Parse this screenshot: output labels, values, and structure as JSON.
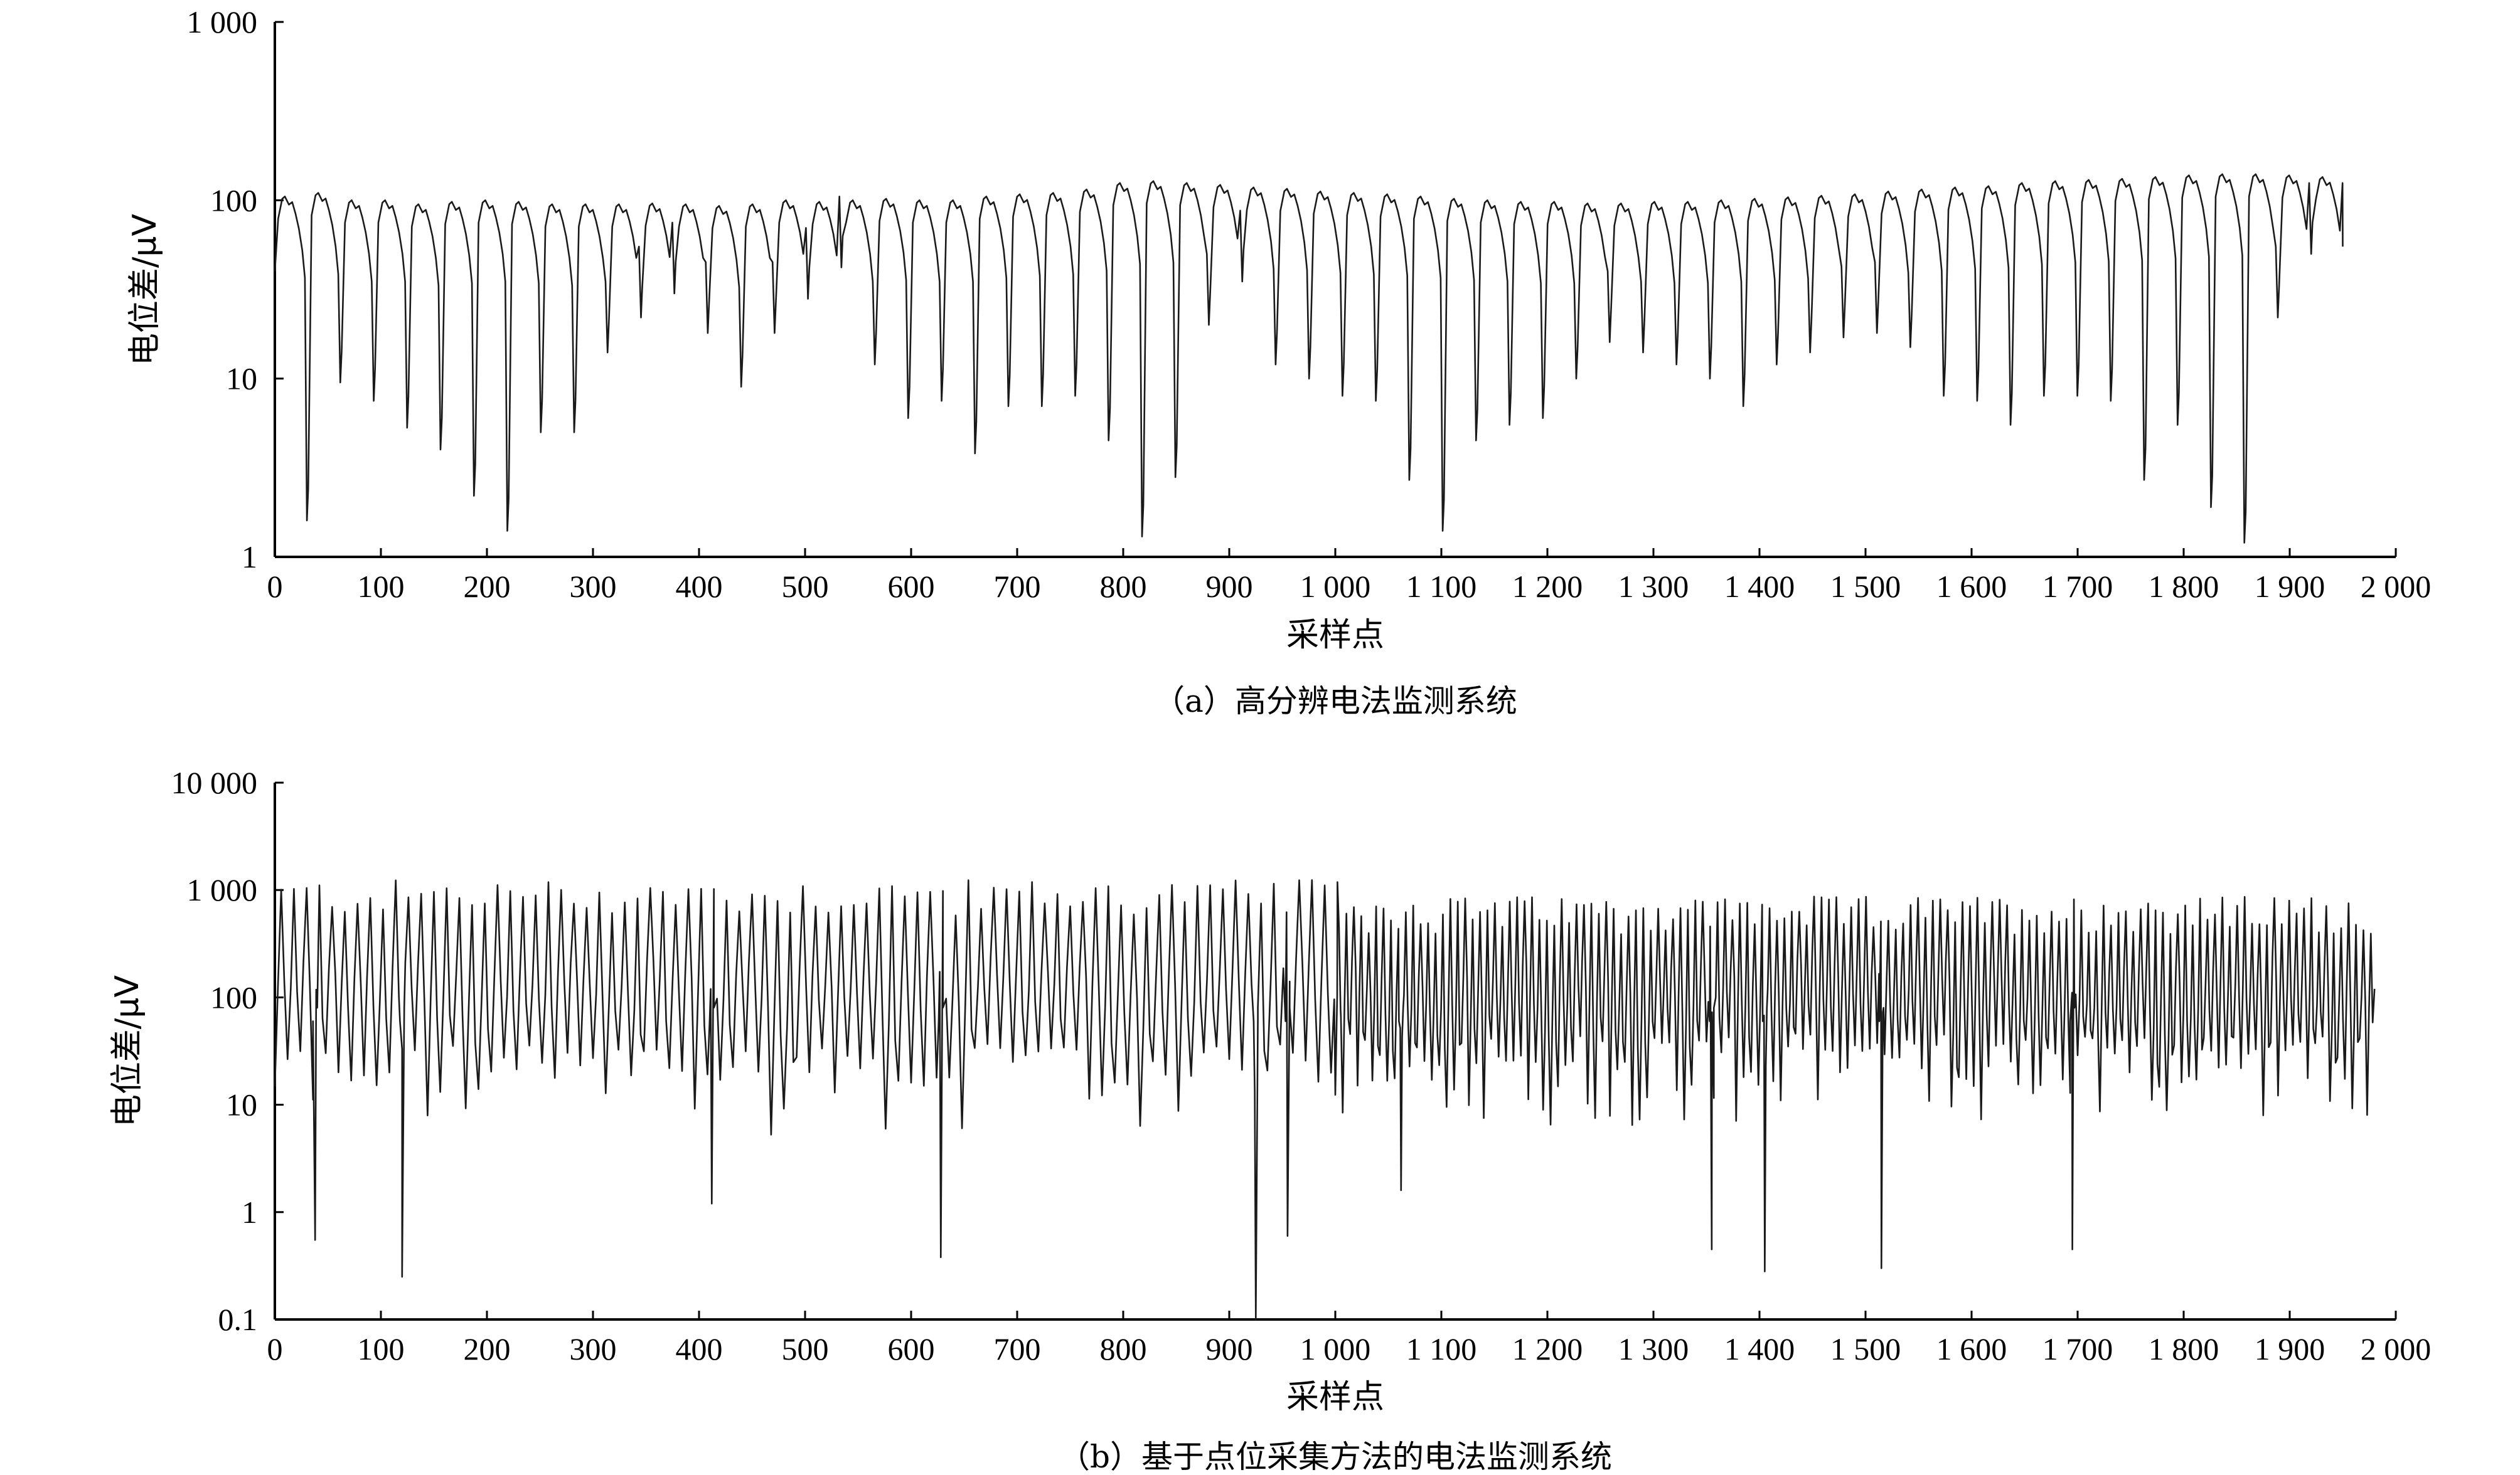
{
  "chart_data": [
    {
      "type": "line",
      "caption": "（a）高分辨电法监测系统",
      "xlabel": "采样点",
      "ylabel": "电位差/μV",
      "y_scale": "log",
      "xlim": [
        0,
        2000
      ],
      "ylim": [
        1,
        1000
      ],
      "x_ticks": [
        0,
        100,
        200,
        300,
        400,
        500,
        600,
        700,
        800,
        900,
        1000,
        1100,
        1200,
        1300,
        1400,
        1500,
        1600,
        1700,
        1800,
        1900,
        2000
      ],
      "x_tick_labels": [
        "0",
        "100",
        "200",
        "300",
        "400",
        "500",
        "600",
        "700",
        "800",
        "900",
        "1 000",
        "1 100",
        "1 200",
        "1 300",
        "1 400",
        "1 500",
        "1 600",
        "1 700",
        "1 800",
        "1 900",
        "2 000"
      ],
      "y_ticks": [
        1,
        10,
        100,
        1000
      ],
      "y_tick_labels": [
        "1",
        "10",
        "100",
        "1 000"
      ],
      "series": [
        {
          "cycle_length": 31.5,
          "x_range": [
            0,
            1950
          ],
          "peak_values": [
            105,
            110,
            100,
            100,
            95,
            98,
            100,
            98,
            95,
            95,
            95,
            96,
            95,
            93,
            95,
            100,
            98,
            100,
            102,
            100,
            100,
            105,
            108,
            110,
            115,
            125,
            128,
            125,
            122,
            118,
            116,
            112,
            110,
            108,
            105,
            102,
            100,
            98,
            98,
            96,
            96,
            98,
            98,
            100,
            102,
            104,
            106,
            108,
            112,
            115,
            118,
            120,
            125,
            128,
            130,
            132,
            135,
            138,
            140,
            140,
            138,
            135
          ],
          "dip_values": [
            1.6,
            9.5,
            7.5,
            5.3,
            4,
            2.2,
            1.4,
            5,
            5,
            14,
            22,
            30,
            18,
            9,
            18,
            28,
            42,
            12,
            6,
            7.5,
            3.8,
            7,
            7,
            8,
            4.5,
            1.3,
            2.8,
            20,
            35,
            12,
            10,
            8,
            7.5,
            2.7,
            1.4,
            4.5,
            5.5,
            6,
            10,
            16,
            14,
            12,
            10,
            7,
            12,
            14,
            17,
            18,
            15,
            8,
            7.5,
            5.5,
            8,
            8,
            7.5,
            2.7,
            5.5,
            1.9,
            1.2,
            22,
            50,
            50
          ]
        }
      ]
    },
    {
      "type": "line",
      "caption": "（b）基于点位采集方法的电法监测系统",
      "xlabel": "采样点",
      "ylabel": "电位差/μV",
      "y_scale": "log",
      "xlim": [
        0,
        2000
      ],
      "ylim": [
        0.1,
        10000
      ],
      "x_ticks": [
        0,
        100,
        200,
        300,
        400,
        500,
        600,
        700,
        800,
        900,
        1000,
        1100,
        1200,
        1300,
        1400,
        1500,
        1600,
        1700,
        1800,
        1900,
        2000
      ],
      "x_tick_labels": [
        "0",
        "100",
        "200",
        "300",
        "400",
        "500",
        "600",
        "700",
        "800",
        "900",
        "1 000",
        "1 100",
        "1 200",
        "1 300",
        "1 400",
        "1 500",
        "1 600",
        "1 700",
        "1 800",
        "1 900",
        "2 000"
      ],
      "y_ticks": [
        0.1,
        1,
        10,
        100,
        1000,
        10000
      ],
      "y_tick_labels": [
        "0.1",
        "1",
        "10",
        "100",
        "1 000",
        "10 000"
      ],
      "series": [
        {
          "x_range": [
            0,
            1980
          ],
          "segments": [
            {
              "x_range": [
                0,
                1000
              ],
              "cycle_length": 12,
              "peak_level": 1000,
              "trough_level": 20
            },
            {
              "x_range": [
                1000,
                1980
              ],
              "cycle_length": 7,
              "peak_level": 700,
              "trough_level": 25
            }
          ],
          "deep_dips": [
            {
              "x": 38,
              "y": 0.55
            },
            {
              "x": 120,
              "y": 0.25
            },
            {
              "x": 412,
              "y": 1.2
            },
            {
              "x": 628,
              "y": 0.38
            },
            {
              "x": 925,
              "y": 0.1
            },
            {
              "x": 955,
              "y": 0.6
            },
            {
              "x": 1062,
              "y": 1.6
            },
            {
              "x": 1355,
              "y": 0.45
            },
            {
              "x": 1405,
              "y": 0.28
            },
            {
              "x": 1515,
              "y": 0.3
            },
            {
              "x": 1695,
              "y": 0.45
            }
          ]
        }
      ]
    }
  ]
}
